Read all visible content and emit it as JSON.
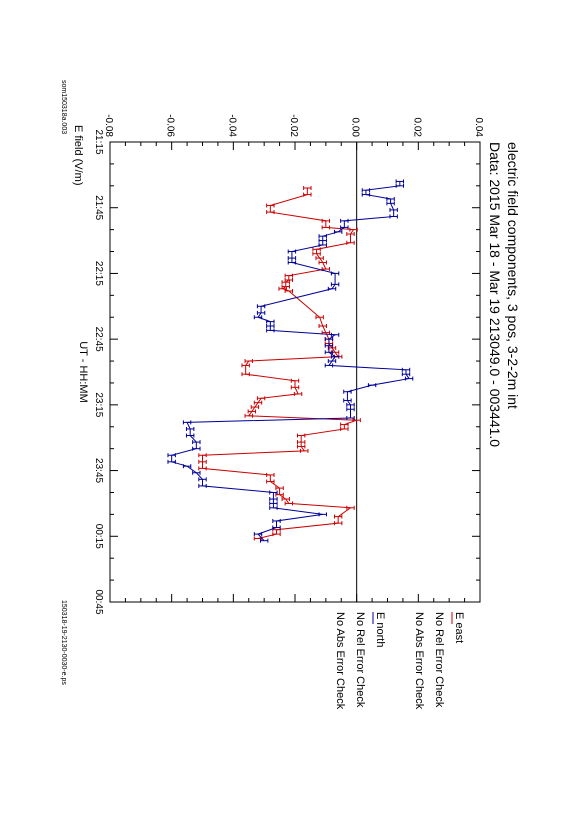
{
  "title": "electric field components, 3 pos, 3-2-2m int",
  "subtitle": "Data: 2015 Mar 18 - Mar 19     213049.0 - 003441.0",
  "xlabel": "UT - HH:MM",
  "ylabel": "E field (V/m)",
  "left_note": "som150318a.003",
  "right_note": "150318-19-2130-0030-e.ps",
  "legend": [
    {
      "label": "E east",
      "color": "#cc0000",
      "line1": "No Rel Error Check",
      "line2": "No Abs Error Check"
    },
    {
      "label": "E north",
      "color": "#000099",
      "line1": "No Rel Error Check",
      "line2": "No Abs Error Check"
    }
  ],
  "chart_data": {
    "type": "line",
    "title": "electric field components, 3 pos, 3-2-2m int",
    "subtitle": "Data: 2015 Mar 18 - Mar 19     213049.0 - 003441.0",
    "xlabel": "UT - HH:MM",
    "ylabel": "E field (V/m)",
    "x_unit": "minutes after 21:15",
    "xlim": [
      0,
      210
    ],
    "ylim": [
      -0.08,
      0.04
    ],
    "x_ticks": [
      "21:15",
      "21:45",
      "22:15",
      "22:45",
      "23:15",
      "23:45",
      "00:15",
      "00:45"
    ],
    "y_ticks": [
      "-0.08",
      "-0.06",
      "-0.04",
      "-0.02",
      "0.00",
      "0.02",
      "0.04"
    ],
    "zero_line": true,
    "error_bars": true,
    "series": [
      {
        "name": "E east",
        "color": "#cc0000",
        "x": [
          21,
          24,
          29,
          32,
          36,
          39,
          40,
          42,
          46,
          49,
          51,
          53,
          55,
          58,
          61,
          63,
          64,
          66,
          67,
          68,
          80,
          84,
          87,
          90,
          92,
          94,
          96,
          98,
          100,
          102,
          106,
          109,
          112,
          115,
          117,
          119,
          121,
          123,
          125,
          127,
          129,
          131,
          134,
          137,
          139,
          141,
          143,
          146,
          149,
          152,
          155,
          158,
          161,
          163,
          165,
          167,
          171,
          174,
          177,
          179,
          181
        ],
        "y": [
          -0.016,
          -0.016,
          -0.028,
          -0.028,
          -0.01,
          -0.01,
          -0.001,
          -0.002,
          -0.002,
          -0.013,
          -0.013,
          -0.012,
          -0.011,
          -0.01,
          -0.022,
          -0.022,
          -0.023,
          -0.023,
          -0.024,
          -0.022,
          -0.012,
          -0.011,
          -0.01,
          -0.009,
          -0.009,
          -0.008,
          -0.007,
          -0.006,
          -0.035,
          -0.036,
          -0.036,
          -0.02,
          -0.02,
          -0.019,
          -0.031,
          -0.032,
          -0.033,
          -0.034,
          -0.035,
          0.0,
          -0.004,
          -0.004,
          -0.018,
          -0.018,
          -0.018,
          -0.017,
          -0.05,
          -0.05,
          -0.05,
          -0.028,
          -0.028,
          -0.025,
          -0.025,
          -0.023,
          -0.022,
          -0.002,
          -0.006,
          -0.006,
          -0.026,
          -0.026,
          -0.032
        ]
      },
      {
        "name": "E north",
        "color": "#000099",
        "x": [
          18,
          20,
          22,
          24,
          26,
          28,
          31,
          34,
          36,
          39,
          41,
          43,
          45,
          47,
          50,
          53,
          55,
          60,
          65,
          67,
          75,
          78,
          80,
          82,
          84,
          86,
          88,
          90,
          93,
          96,
          98,
          100,
          102,
          104,
          106,
          108,
          111,
          114,
          118,
          120,
          122,
          126,
          128,
          131,
          134,
          137,
          140,
          143,
          146,
          148,
          151,
          154,
          157,
          160,
          163,
          165,
          167,
          170,
          173,
          176,
          179,
          182
        ],
        "y": [
          0.014,
          0.014,
          0.003,
          0.003,
          0.011,
          0.011,
          0.012,
          0.012,
          -0.004,
          -0.004,
          -0.006,
          -0.011,
          -0.011,
          -0.011,
          -0.021,
          -0.021,
          -0.021,
          -0.007,
          -0.007,
          -0.008,
          -0.031,
          -0.031,
          -0.032,
          -0.028,
          -0.028,
          -0.028,
          -0.007,
          -0.009,
          -0.009,
          -0.009,
          -0.007,
          -0.008,
          -0.009,
          0.016,
          0.016,
          0.017,
          0.005,
          -0.003,
          -0.003,
          -0.002,
          -0.002,
          -0.002,
          -0.055,
          -0.054,
          -0.054,
          -0.052,
          -0.052,
          -0.06,
          -0.06,
          -0.055,
          -0.052,
          -0.05,
          -0.05,
          -0.027,
          -0.027,
          -0.027,
          -0.027,
          -0.011,
          -0.026,
          -0.026,
          -0.032,
          -0.03
        ]
      }
    ]
  }
}
